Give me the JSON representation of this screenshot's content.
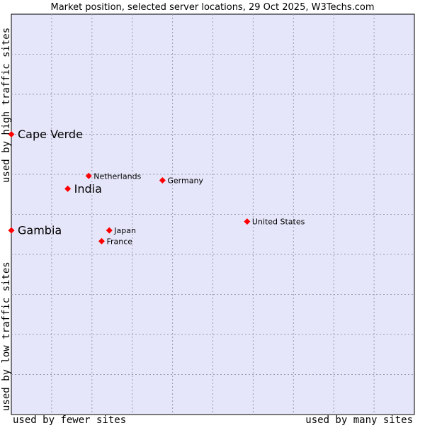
{
  "chart_data": {
    "type": "scatter",
    "title": "Market position, selected server locations, 29 Oct 2025, W3Techs.com",
    "xlabel_left": "used by fewer sites",
    "xlabel_right": "used by many sites",
    "ylabel_top": "used by high traffic sites",
    "ylabel_bottom": "used by low traffic sites",
    "xlim": [
      0,
      100
    ],
    "ylim": [
      0,
      100
    ],
    "grid": true,
    "colors": {
      "plot_bg": "#e6e6fa",
      "grid": "#9a9ab0",
      "marker": "#ff0000",
      "text": "#000000"
    },
    "points": [
      {
        "label": "Cape Verde",
        "x": 0,
        "y": 70,
        "emphasis": true
      },
      {
        "label": "India",
        "x": 14,
        "y": 56.4,
        "emphasis": true
      },
      {
        "label": "Gambia",
        "x": 0,
        "y": 46,
        "emphasis": true
      },
      {
        "label": "Netherlands",
        "x": 19.2,
        "y": 59.6,
        "emphasis": false
      },
      {
        "label": "Germany",
        "x": 37.5,
        "y": 58.5,
        "emphasis": false
      },
      {
        "label": "United States",
        "x": 58.5,
        "y": 48.2,
        "emphasis": false
      },
      {
        "label": "Japan",
        "x": 24.3,
        "y": 46,
        "emphasis": false
      },
      {
        "label": "France",
        "x": 22.4,
        "y": 43.3,
        "emphasis": false
      }
    ]
  }
}
